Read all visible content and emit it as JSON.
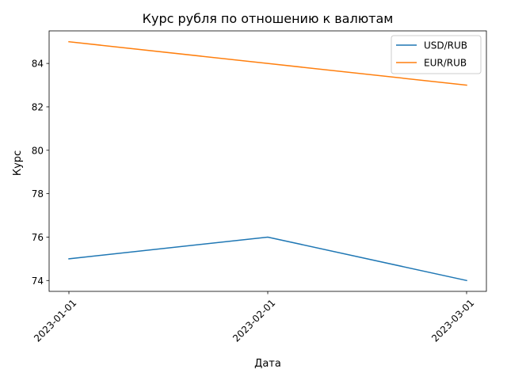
{
  "chart_data": {
    "type": "line",
    "title": "Курс рубля по отношению к валютам",
    "xlabel": "Дата",
    "ylabel": "Курс",
    "x": [
      "2023-01-01",
      "2023-02-01",
      "2023-03-01"
    ],
    "ylim": [
      73.5,
      85.5
    ],
    "yticks": [
      74,
      76,
      78,
      80,
      82,
      84
    ],
    "grid": false,
    "legend_position": "top-right",
    "series": [
      {
        "name": "USD/RUB",
        "color": "#1f77b4",
        "values": [
          75,
          76,
          74
        ]
      },
      {
        "name": "EUR/RUB",
        "color": "#ff7f0e",
        "values": [
          85,
          84,
          83
        ]
      }
    ]
  }
}
